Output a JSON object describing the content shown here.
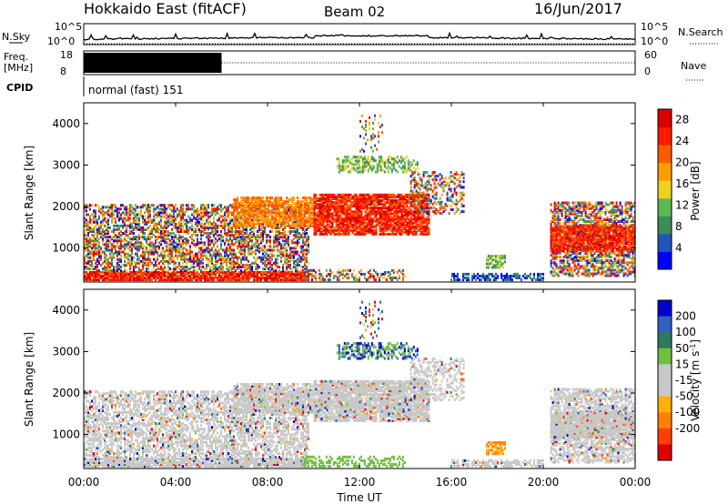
{
  "header": {
    "station": "Hokkaido East (fitACF)",
    "beam": "Beam 02",
    "date": "16/Jun/2017"
  },
  "noise_panel": {
    "left_label": "N.Sky",
    "right_label": "N.Search",
    "tick_top": "10^5",
    "tick_bottom": "10^0"
  },
  "freq_panel": {
    "left_label_1": "Freq.",
    "left_label_2": "[MHz]",
    "left_tick_top": "18",
    "left_tick_bottom": "8",
    "right_label": "Nave",
    "right_tick_top": "60",
    "right_tick_bottom": "0",
    "bar_end_hour": 6
  },
  "cpid": {
    "label": "CPID",
    "value": "normal (fast) 151"
  },
  "colors": {
    "power": [
      "#0000ff",
      "#2255bb",
      "#3c8c5a",
      "#5aba52",
      "#f0d020",
      "#ff9d00",
      "#ff5a00",
      "#ff1a00",
      "#d80000"
    ],
    "velocity": [
      "#0000cc",
      "#3060c0",
      "#2e7a5a",
      "#70c040",
      "#c8c8c8",
      "#c8c8c8",
      "#ffb000",
      "#ff8000",
      "#ff4000",
      "#e00000"
    ]
  },
  "chart_data": [
    {
      "type": "heatmap",
      "name": "power",
      "ylabel": "Slant Range [km]",
      "xlim": [
        0,
        24
      ],
      "ylim": [
        180,
        4500
      ],
      "yticks": [
        "1000",
        "2000",
        "3000",
        "4000"
      ],
      "colorbar_label": "Power [dB]",
      "colorbar_ticks": [
        "4",
        "8",
        "12",
        "16",
        "20",
        "24",
        "28"
      ],
      "colorbar_range": [
        0,
        30
      ]
    },
    {
      "type": "heatmap",
      "name": "velocity",
      "ylabel": "Slant Range [km]",
      "xlim": [
        0,
        24
      ],
      "ylim": [
        180,
        4500
      ],
      "yticks": [
        "1000",
        "2000",
        "3000",
        "4000"
      ],
      "colorbar_label": "Velocity [m s",
      "colorbar_label_sup": "-1",
      "colorbar_label_end": "]",
      "colorbar_ticks": [
        "200",
        "100",
        "50",
        "15",
        "-15",
        "-50",
        "-100",
        "-200"
      ]
    }
  ],
  "xaxis": {
    "label": "Time UT",
    "ticks": [
      "00:00",
      "04:00",
      "08:00",
      "12:00",
      "16:00",
      "20:00",
      "00:00"
    ]
  }
}
